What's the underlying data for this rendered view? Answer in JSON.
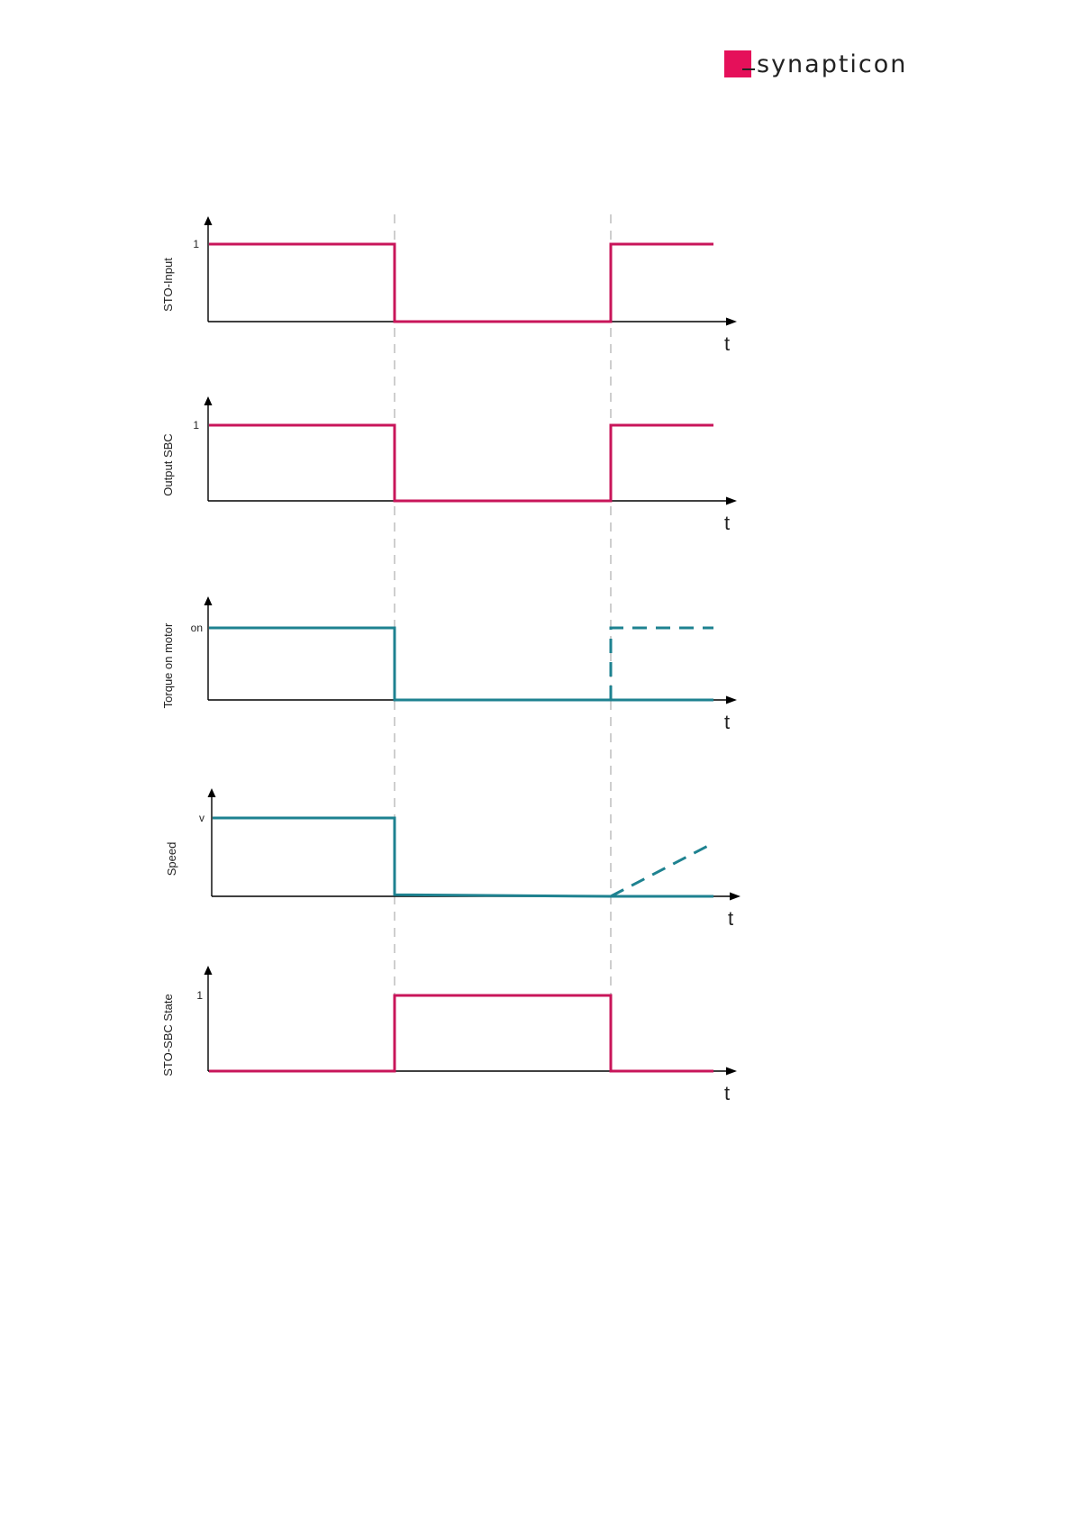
{
  "header": {
    "logo_text": "synapticon",
    "brand_color": "#e5105a"
  },
  "colors": {
    "digital": "#c8155a",
    "analog": "#1e8290",
    "axis": "#000000",
    "event_line": "#bdbdbd"
  },
  "events": [
    "t1",
    "t2"
  ],
  "time_label": "t",
  "panels": [
    {
      "id": "sto-input",
      "ylabel": "STO-Input",
      "level_label": "1",
      "signal": "digital",
      "trace": [
        [
          0,
          1
        ],
        [
          "t1",
          1
        ],
        [
          "t1",
          0
        ],
        [
          "t2",
          0
        ],
        [
          "t2",
          1
        ],
        [
          "end",
          1
        ]
      ]
    },
    {
      "id": "output-sbc",
      "ylabel": "Output SBC",
      "level_label": "1",
      "signal": "digital",
      "trace": [
        [
          0,
          1
        ],
        [
          "t1",
          1
        ],
        [
          "t1",
          0
        ],
        [
          "t2",
          0
        ],
        [
          "t2",
          1
        ],
        [
          "end",
          1
        ]
      ]
    },
    {
      "id": "torque",
      "ylabel": "Torque on motor",
      "level_label": "on",
      "signal": "analog",
      "trace": [
        [
          0,
          1
        ],
        [
          "t1",
          1
        ],
        [
          "t1",
          0
        ],
        [
          "end",
          0
        ]
      ],
      "dashed": [
        [
          "t2",
          0
        ],
        [
          "t2",
          1
        ],
        [
          "end",
          1
        ]
      ]
    },
    {
      "id": "speed",
      "ylabel": "Speed",
      "level_label": "v",
      "signal": "analog",
      "trace": [
        [
          0,
          1
        ],
        [
          "t1",
          1
        ],
        [
          "t1",
          0.02
        ],
        [
          "t2",
          0
        ],
        [
          "end",
          0
        ]
      ],
      "dashed": [
        [
          "t2",
          0
        ],
        [
          "end",
          0.68
        ]
      ]
    },
    {
      "id": "sto-sbc-state",
      "ylabel": "STO-SBC State",
      "level_label": "1",
      "signal": "digital",
      "trace": [
        [
          0,
          0
        ],
        [
          "t1",
          0
        ],
        [
          "t1",
          1
        ],
        [
          "t2",
          1
        ],
        [
          "t2",
          0
        ],
        [
          "end",
          0
        ]
      ]
    }
  ]
}
